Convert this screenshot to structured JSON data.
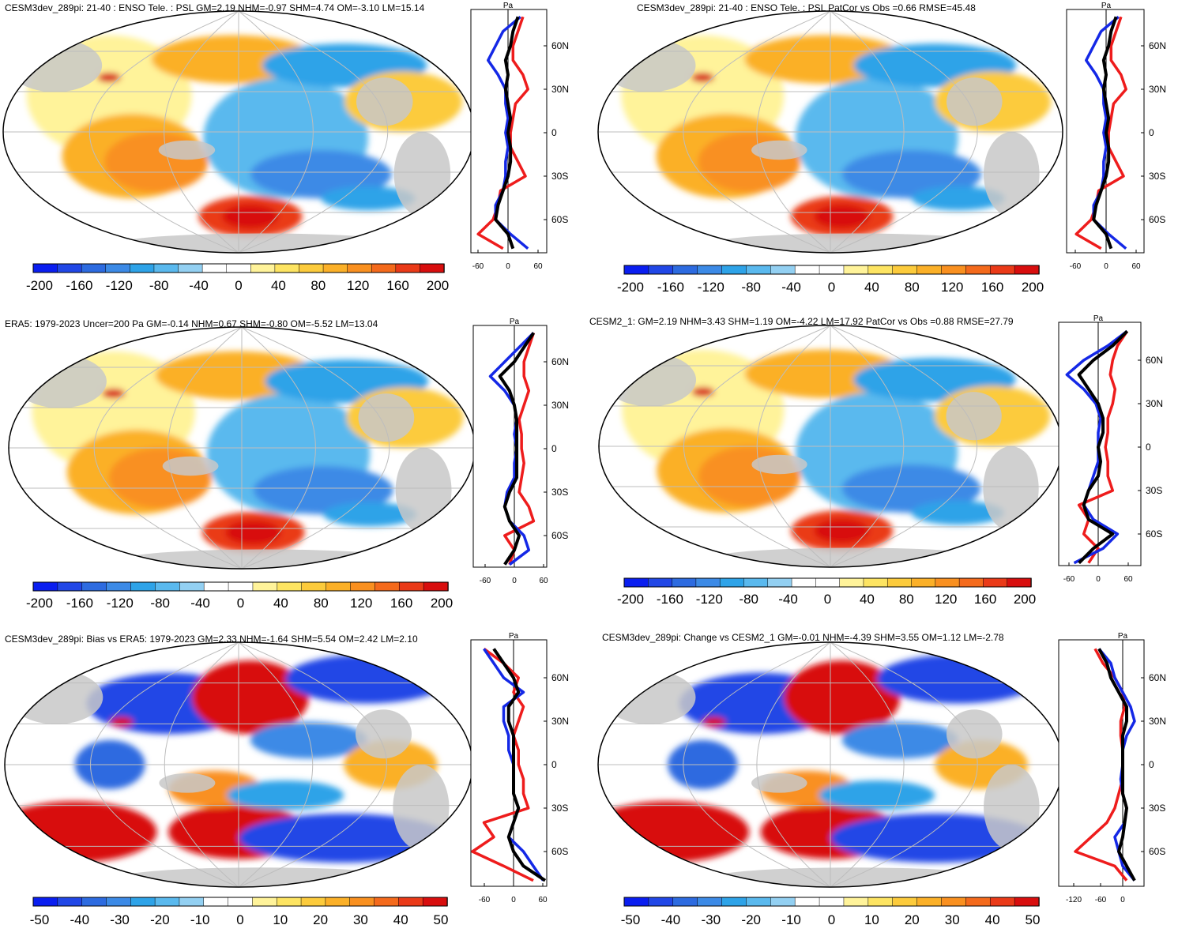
{
  "figure": {
    "panels": [
      {
        "id": "p1",
        "title": "CESM3dev_289pi: 21-40 : ENSO Tele. : PSL GM=2.19 NHM=-0.97 SHM=4.74 OM=-3.10 LM=15.14",
        "colorbar": {
          "labels": [
            "-200",
            "-160",
            "-120",
            "-80",
            "-40",
            "0",
            "40",
            "80",
            "120",
            "160",
            "200"
          ]
        },
        "profile": {
          "unit": "Pa",
          "lat_labels": [
            "60N",
            "30N",
            "0",
            "30S",
            "60S"
          ],
          "x_labels": [
            "-60",
            "0",
            "60"
          ]
        }
      },
      {
        "id": "p2",
        "title": "CESM3dev_289pi: 21-40 : ENSO Tele. : PSL PatCor vs Obs =0.66 RMSE=45.48",
        "colorbar": {
          "labels": [
            "-200",
            "-160",
            "-120",
            "-80",
            "-40",
            "0",
            "40",
            "80",
            "120",
            "160",
            "200"
          ]
        },
        "profile": {
          "unit": "Pa",
          "lat_labels": [
            "60N",
            "30N",
            "0",
            "30S",
            "60S"
          ],
          "x_labels": [
            "-60",
            "0",
            "60"
          ]
        }
      },
      {
        "id": "p3",
        "title": "ERA5: 1979-2023 Uncer=200 Pa GM=-0.14 NHM=0.67 SHM=-0.80 OM=-5.52 LM=13.04",
        "colorbar": {
          "labels": [
            "-200",
            "-160",
            "-120",
            "-80",
            "-40",
            "0",
            "40",
            "80",
            "120",
            "160",
            "200"
          ]
        },
        "profile": {
          "unit": "Pa",
          "lat_labels": [
            "60N",
            "30N",
            "0",
            "30S",
            "60S"
          ],
          "x_labels": [
            "-60",
            "0",
            "60"
          ]
        }
      },
      {
        "id": "p4",
        "title": "CESM2_1: GM=2.19 NHM=3.43 SHM=1.19 OM=-4.22 LM=17.92 PatCor vs Obs =0.88 RMSE=27.79",
        "colorbar": {
          "labels": [
            "-200",
            "-160",
            "-120",
            "-80",
            "-40",
            "0",
            "40",
            "80",
            "120",
            "160",
            "200"
          ]
        },
        "profile": {
          "unit": "Pa",
          "lat_labels": [
            "60N",
            "30N",
            "0",
            "30S",
            "60S"
          ],
          "x_labels": [
            "-60",
            "0",
            "60"
          ]
        }
      },
      {
        "id": "p5",
        "title": "CESM3dev_289pi: Bias vs ERA5: 1979-2023 GM=2.33 NHM=-1.64 SHM=5.54 OM=2.42 LM=2.10",
        "colorbar": {
          "labels": [
            "-50",
            "-40",
            "-30",
            "-20",
            "-10",
            "0",
            "10",
            "20",
            "30",
            "40",
            "50"
          ]
        },
        "profile": {
          "unit": "Pa",
          "lat_labels": [
            "60N",
            "30N",
            "0",
            "30S",
            "60S"
          ],
          "x_labels": [
            "-60",
            "0",
            "60"
          ]
        }
      },
      {
        "id": "p6",
        "title": "CESM3dev_289pi: Change vs CESM2_1 GM=-0.01 NHM=-4.39 SHM=3.55 OM=1.12 LM=-2.78",
        "colorbar": {
          "labels": [
            "-50",
            "-40",
            "-30",
            "-20",
            "-10",
            "0",
            "10",
            "20",
            "30",
            "40",
            "50"
          ]
        },
        "profile": {
          "unit": "Pa",
          "lat_labels": [
            "60N",
            "30N",
            "0",
            "30S",
            "60S"
          ],
          "x_labels": [
            "-120",
            "-60",
            "0"
          ]
        }
      }
    ],
    "colors": {
      "palette": [
        "#0a1ef0",
        "#2147e6",
        "#2d6be0",
        "#3c8ae6",
        "#2ea3e8",
        "#5ab9ee",
        "#93d0f2",
        "#ffffff",
        "#ffffff",
        "#fff39a",
        "#fde462",
        "#fccb3c",
        "#fbb028",
        "#f99020",
        "#f46a1c",
        "#ea3a18",
        "#d80e0e"
      ],
      "land": "#c8c8c8",
      "profile_total": "#000000",
      "profile_ocean": "#1428e6",
      "profile_land": "#ee1c1c"
    },
    "chart_data": [
      {
        "type": "heatmap",
        "panel": "p1",
        "title": "CESM3dev_289pi: 21-40 : ENSO Tele. : PSL GM=2.19 NHM=-0.97 SHM=4.74 OM=-3.10 LM=15.14",
        "variable": "PSL",
        "units": "Pa",
        "levels": [
          -200,
          -180,
          -160,
          -140,
          -120,
          -100,
          -80,
          -60,
          -40,
          -20,
          0,
          20,
          40,
          60,
          80,
          100,
          120,
          140,
          160,
          180,
          200
        ],
        "zonal_mean_profile": {
          "lat": [
            80,
            70,
            60,
            50,
            40,
            30,
            20,
            10,
            0,
            -10,
            -20,
            -30,
            -40,
            -50,
            -60,
            -70,
            -80
          ],
          "total": [
            20,
            10,
            5,
            -5,
            0,
            -5,
            0,
            5,
            0,
            5,
            5,
            0,
            -10,
            -20,
            -25,
            0,
            10
          ],
          "ocean": [
            25,
            -10,
            -25,
            -40,
            -20,
            -5,
            -5,
            0,
            -5,
            0,
            -5,
            -5,
            -10,
            -25,
            -25,
            5,
            40
          ],
          "land": [
            30,
            20,
            10,
            10,
            30,
            40,
            15,
            10,
            5,
            5,
            20,
            35,
            -15,
            -20,
            -30,
            -60,
            -10
          ]
        }
      },
      {
        "type": "heatmap",
        "panel": "p2",
        "title": "CESM3dev_289pi: 21-40 : ENSO Tele. : PSL PatCor vs Obs =0.66 RMSE=45.48",
        "variable": "PSL",
        "units": "Pa",
        "levels": [
          -200,
          -180,
          -160,
          -140,
          -120,
          -100,
          -80,
          -60,
          -40,
          -20,
          0,
          20,
          40,
          60,
          80,
          100,
          120,
          140,
          160,
          180,
          200
        ],
        "zonal_mean_profile": {
          "lat": [
            80,
            70,
            60,
            50,
            40,
            30,
            20,
            10,
            0,
            -10,
            -20,
            -30,
            -40,
            -50,
            -60,
            -70,
            -80
          ],
          "total": [
            20,
            10,
            5,
            -5,
            0,
            -5,
            0,
            5,
            0,
            5,
            5,
            0,
            -10,
            -20,
            -25,
            0,
            10
          ],
          "ocean": [
            25,
            -10,
            -25,
            -40,
            -20,
            -5,
            -5,
            0,
            -5,
            0,
            -5,
            -5,
            -10,
            -25,
            -25,
            5,
            40
          ],
          "land": [
            30,
            20,
            10,
            10,
            30,
            40,
            15,
            10,
            5,
            5,
            20,
            35,
            -15,
            -20,
            -30,
            -60,
            -10
          ]
        }
      },
      {
        "type": "heatmap",
        "panel": "p3",
        "title": "ERA5: 1979-2023 Uncer=200 Pa GM=-0.14 NHM=0.67 SHM=-0.80 OM=-5.52 LM=13.04",
        "variable": "PSL",
        "units": "Pa",
        "levels": [
          -200,
          -180,
          -160,
          -140,
          -120,
          -100,
          -80,
          -60,
          -40,
          -20,
          0,
          20,
          40,
          60,
          80,
          100,
          120,
          140,
          160,
          180,
          200
        ],
        "zonal_mean_profile": {
          "lat": [
            80,
            70,
            60,
            50,
            40,
            30,
            20,
            10,
            0,
            -10,
            -20,
            -30,
            -40,
            -50,
            -60,
            -70,
            -80
          ],
          "total": [
            40,
            20,
            0,
            -30,
            -10,
            0,
            5,
            5,
            5,
            5,
            5,
            -10,
            -20,
            -10,
            10,
            0,
            -20
          ],
          "ocean": [
            40,
            10,
            -20,
            -50,
            -20,
            0,
            5,
            0,
            5,
            0,
            0,
            -15,
            -20,
            -10,
            20,
            30,
            -10
          ],
          "land": [
            40,
            30,
            20,
            20,
            30,
            20,
            10,
            15,
            15,
            20,
            15,
            10,
            30,
            40,
            -20,
            0,
            -10
          ]
        }
      },
      {
        "type": "heatmap",
        "panel": "p4",
        "title": "CESM2_1: GM=2.19 NHM=3.43 SHM=1.19 OM=-4.22 LM=17.92 PatCor vs Obs =0.88 RMSE=27.79",
        "variable": "PSL",
        "units": "Pa",
        "levels": [
          -200,
          -180,
          -160,
          -140,
          -120,
          -100,
          -80,
          -60,
          -40,
          -20,
          0,
          20,
          40,
          60,
          80,
          100,
          120,
          140,
          160,
          180,
          200
        ],
        "zonal_mean_profile": {
          "lat": [
            80,
            70,
            60,
            50,
            40,
            30,
            20,
            10,
            0,
            -10,
            -20,
            -30,
            -40,
            -50,
            -60,
            -70,
            -80
          ],
          "total": [
            60,
            30,
            -10,
            -40,
            -20,
            0,
            10,
            10,
            0,
            5,
            0,
            -20,
            -30,
            -20,
            30,
            -10,
            -40
          ],
          "ocean": [
            60,
            20,
            -30,
            -65,
            -30,
            -5,
            5,
            0,
            0,
            0,
            -10,
            -20,
            -30,
            -10,
            40,
            10,
            -50
          ],
          "land": [
            60,
            40,
            30,
            25,
            35,
            30,
            20,
            20,
            15,
            20,
            20,
            30,
            -40,
            -20,
            -30,
            0,
            -20
          ]
        }
      },
      {
        "type": "heatmap",
        "panel": "p5",
        "title": "CESM3dev_289pi: Bias vs ERA5: 1979-2023 GM=2.33 NHM=-1.64 SHM=5.54 OM=2.42 LM=2.10",
        "variable": "PSL",
        "units": "Pa",
        "levels": [
          -50,
          -45,
          -40,
          -35,
          -30,
          -25,
          -20,
          -15,
          -10,
          -5,
          0,
          5,
          10,
          15,
          20,
          25,
          30,
          35,
          40,
          45,
          50
        ],
        "zonal_mean_profile": {
          "lat": [
            80,
            70,
            60,
            50,
            40,
            30,
            20,
            10,
            0,
            -10,
            -20,
            -30,
            -40,
            -50,
            -60,
            -70,
            -80
          ],
          "total": [
            -20,
            -10,
            0,
            5,
            -5,
            -5,
            0,
            0,
            0,
            0,
            0,
            5,
            0,
            -5,
            0,
            10,
            40
          ],
          "ocean": [
            -30,
            -20,
            -10,
            10,
            -10,
            -10,
            -5,
            -5,
            0,
            0,
            0,
            5,
            0,
            -5,
            10,
            20,
            30
          ],
          "land": [
            -30,
            -10,
            5,
            0,
            10,
            5,
            0,
            5,
            5,
            10,
            10,
            15,
            -30,
            -20,
            -60,
            -10,
            20
          ]
        }
      },
      {
        "type": "heatmap",
        "panel": "p6",
        "title": "CESM3dev_289pi: Change vs CESM2_1 GM=-0.01 NHM=-4.39 SHM=3.55 OM=1.12 LM=-2.78",
        "variable": "PSL",
        "units": "Pa",
        "levels": [
          -50,
          -45,
          -40,
          -35,
          -30,
          -25,
          -20,
          -15,
          -10,
          -5,
          0,
          5,
          10,
          15,
          20,
          25,
          30,
          35,
          40,
          45,
          50
        ],
        "zonal_mean_profile": {
          "lat": [
            80,
            70,
            60,
            50,
            40,
            30,
            20,
            10,
            0,
            -10,
            -20,
            -30,
            -40,
            -50,
            -60,
            -70,
            -80
          ],
          "total": [
            -60,
            -40,
            -30,
            -10,
            10,
            10,
            0,
            0,
            0,
            0,
            0,
            10,
            5,
            0,
            -10,
            10,
            30
          ],
          "ocean": [
            -60,
            -30,
            -20,
            0,
            20,
            30,
            10,
            0,
            0,
            -5,
            0,
            10,
            5,
            -20,
            -10,
            0,
            30
          ],
          "land": [
            -70,
            -50,
            -20,
            0,
            5,
            -5,
            -5,
            0,
            0,
            0,
            -10,
            -20,
            -40,
            -80,
            -120,
            -20,
            10
          ]
        }
      }
    ]
  }
}
